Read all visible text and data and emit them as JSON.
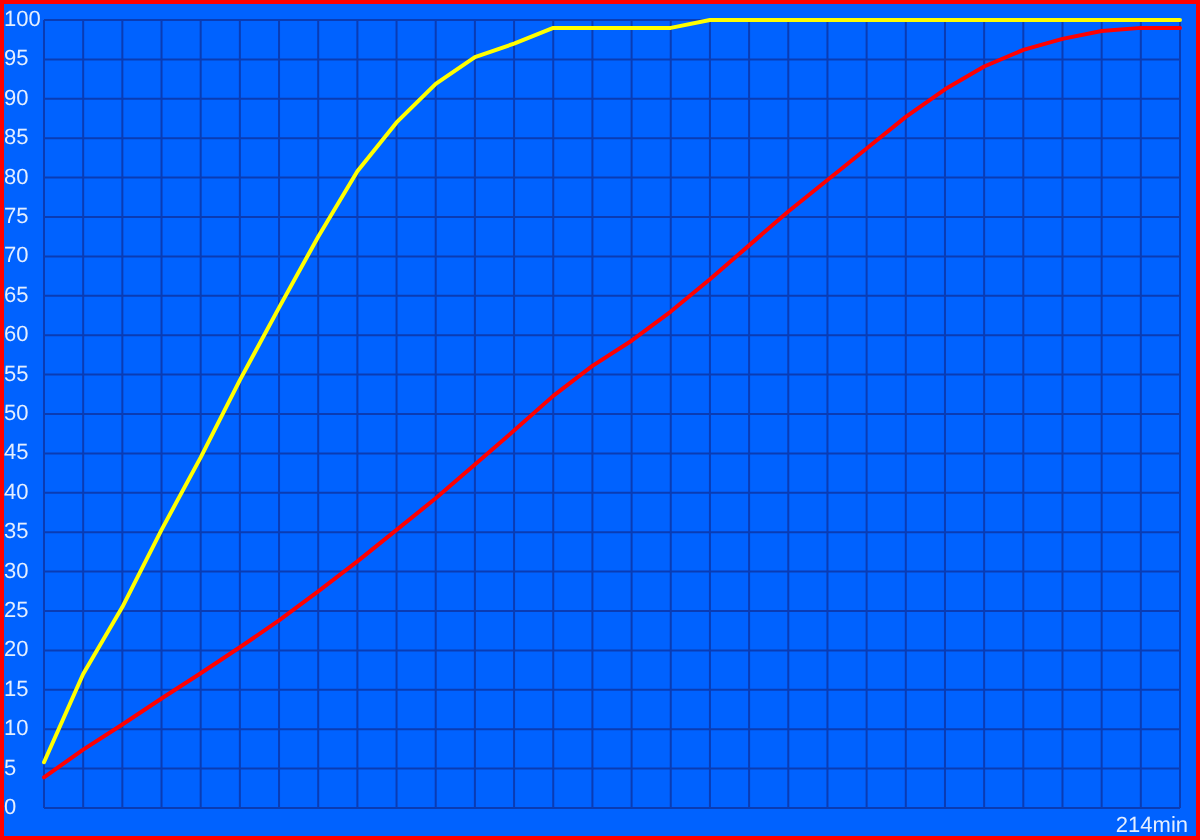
{
  "chart_data": {
    "type": "line",
    "xlabel": "214min",
    "categories": [
      null,
      null,
      null,
      null,
      null,
      null,
      null,
      null,
      null,
      null,
      null,
      null,
      null,
      null,
      null,
      null,
      null,
      null,
      null,
      null,
      null,
      null,
      null,
      null,
      null,
      null,
      null,
      null,
      null,
      null
    ],
    "ylim": [
      0,
      100
    ],
    "yticks": [
      0,
      5,
      10,
      15,
      20,
      25,
      30,
      35,
      40,
      45,
      50,
      55,
      60,
      65,
      70,
      75,
      80,
      85,
      90,
      95,
      100
    ],
    "grid": true,
    "tick_labels": "y",
    "series": [
      {
        "color": "#ffff00",
        "values": [
          5.8,
          17,
          25.5,
          35.3,
          44.5,
          54.3,
          63.5,
          72.5,
          80.8,
          87,
          91.9,
          95.3,
          97,
          99,
          99,
          99,
          99,
          100,
          100,
          100,
          100,
          100,
          100,
          100,
          100,
          100,
          100,
          100,
          100,
          100
        ]
      },
      {
        "color": "#ff0000",
        "values": [
          3.9,
          7.4,
          10.6,
          13.9,
          17.1,
          20.4,
          23.8,
          27.5,
          31.3,
          35.3,
          39.3,
          43.6,
          47.9,
          52.3,
          56.1,
          59.3,
          63,
          67.1,
          71.4,
          75.7,
          79.7,
          83.7,
          87.7,
          91.2,
          94.1,
          96.2,
          97.6,
          98.6,
          99,
          99
        ]
      }
    ]
  }
}
